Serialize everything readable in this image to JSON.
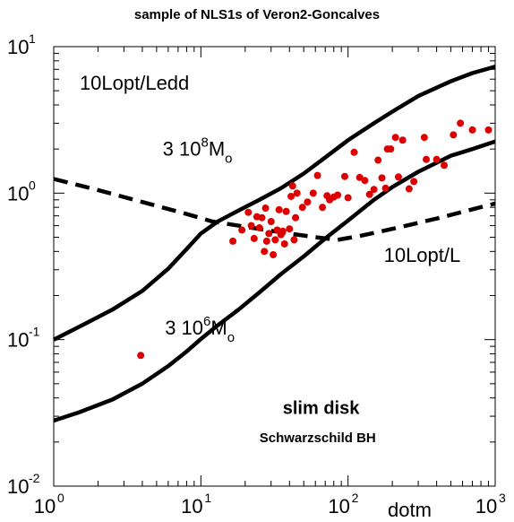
{
  "chart_data": {
    "type": "scatter",
    "title": "sample of NLS1s of Veron2-Goncalves",
    "xlabel": "dotm",
    "ylabel": "",
    "xscale": "log",
    "yscale": "log",
    "xlim": [
      1,
      1000
    ],
    "ylim": [
      0.01,
      10
    ],
    "grid": false,
    "x_ticks": [
      {
        "value": 1,
        "base": "10",
        "exp": "0"
      },
      {
        "value": 10,
        "base": "10",
        "exp": "1"
      },
      {
        "value": 100,
        "base": "10",
        "exp": "2"
      },
      {
        "value": 1000,
        "base": "10",
        "exp": "3"
      }
    ],
    "y_ticks": [
      {
        "value": 0.01,
        "base": "10",
        "exp": "-2"
      },
      {
        "value": 0.1,
        "base": "10",
        "exp": "-1"
      },
      {
        "value": 1,
        "base": "10",
        "exp": "0"
      },
      {
        "value": 10,
        "base": "10",
        "exp": "1"
      }
    ],
    "curves": [
      {
        "style": "solid",
        "points": [
          [
            1,
            0.1
          ],
          [
            1.6,
            0.127
          ],
          [
            2.5,
            0.16
          ],
          [
            4,
            0.215
          ],
          [
            6,
            0.305
          ],
          [
            8,
            0.415
          ],
          [
            10,
            0.53
          ],
          [
            13,
            0.64
          ],
          [
            18,
            0.76
          ],
          [
            25,
            0.9
          ],
          [
            35,
            1.08
          ],
          [
            50,
            1.36
          ],
          [
            70,
            1.75
          ],
          [
            100,
            2.3
          ],
          [
            150,
            3.0
          ],
          [
            200,
            3.6
          ],
          [
            300,
            4.6
          ],
          [
            500,
            5.8
          ],
          [
            700,
            6.6
          ],
          [
            1000,
            7.3
          ]
        ]
      },
      {
        "style": "solid",
        "points": [
          [
            1,
            0.028
          ],
          [
            1.5,
            0.032
          ],
          [
            2.5,
            0.039
          ],
          [
            4,
            0.05
          ],
          [
            6,
            0.066
          ],
          [
            8,
            0.083
          ],
          [
            10,
            0.101
          ],
          [
            13,
            0.125
          ],
          [
            18,
            0.16
          ],
          [
            25,
            0.21
          ],
          [
            35,
            0.28
          ],
          [
            50,
            0.37
          ],
          [
            70,
            0.49
          ],
          [
            100,
            0.65
          ],
          [
            150,
            0.9
          ],
          [
            200,
            1.1
          ],
          [
            300,
            1.4
          ],
          [
            500,
            1.8
          ],
          [
            700,
            2.0
          ],
          [
            1000,
            2.25
          ]
        ]
      },
      {
        "style": "dashed",
        "points": [
          [
            1,
            1.25
          ],
          [
            2,
            1.05
          ],
          [
            4,
            0.87
          ],
          [
            8,
            0.72
          ],
          [
            12,
            0.64
          ],
          [
            20,
            0.59
          ],
          [
            35,
            0.54
          ],
          [
            60,
            0.5
          ],
          [
            85,
            0.48
          ],
          [
            120,
            0.51
          ],
          [
            200,
            0.57
          ],
          [
            400,
            0.67
          ],
          [
            1000,
            0.85
          ]
        ]
      }
    ],
    "series": [
      {
        "color": "#dd0000",
        "points": [
          [
            3.9,
            0.078
          ],
          [
            16.5,
            0.47
          ],
          [
            19,
            0.56
          ],
          [
            21,
            0.74
          ],
          [
            22,
            0.6
          ],
          [
            23,
            0.49
          ],
          [
            24,
            0.69
          ],
          [
            25,
            0.58
          ],
          [
            26,
            0.68
          ],
          [
            27,
            0.4
          ],
          [
            27.5,
            0.79
          ],
          [
            28,
            0.47
          ],
          [
            29,
            0.53
          ],
          [
            30,
            0.64
          ],
          [
            31,
            0.38
          ],
          [
            32,
            0.48
          ],
          [
            33,
            0.56
          ],
          [
            34,
            0.77
          ],
          [
            35,
            0.52
          ],
          [
            36,
            0.55
          ],
          [
            37,
            0.45
          ],
          [
            38,
            0.75
          ],
          [
            40,
            0.57
          ],
          [
            41,
            0.95
          ],
          [
            42,
            1.12
          ],
          [
            43,
            0.48
          ],
          [
            44,
            0.68
          ],
          [
            45,
            1.0
          ],
          [
            49,
            0.8
          ],
          [
            53,
            0.87
          ],
          [
            58,
            1.0
          ],
          [
            62,
            1.32
          ],
          [
            67,
            0.8
          ],
          [
            72,
            0.96
          ],
          [
            75,
            0.9
          ],
          [
            80,
            0.94
          ],
          [
            85,
            0.97
          ],
          [
            95,
            1.3
          ],
          [
            100,
            0.93
          ],
          [
            110,
            1.9
          ],
          [
            120,
            1.28
          ],
          [
            130,
            1.22
          ],
          [
            140,
            0.98
          ],
          [
            150,
            1.06
          ],
          [
            160,
            1.68
          ],
          [
            170,
            1.27
          ],
          [
            180,
            1.08
          ],
          [
            185,
            2.0
          ],
          [
            195,
            2.0
          ],
          [
            210,
            2.4
          ],
          [
            220,
            1.29
          ],
          [
            235,
            2.3
          ],
          [
            260,
            1.07
          ],
          [
            280,
            1.2
          ],
          [
            330,
            2.4
          ],
          [
            340,
            1.7
          ],
          [
            400,
            1.7
          ],
          [
            450,
            1.55
          ],
          [
            520,
            2.5
          ],
          [
            580,
            3.0
          ],
          [
            700,
            2.7
          ],
          [
            900,
            2.7
          ]
        ]
      }
    ],
    "annotations": [
      {
        "text": "10Lopt/Ledd",
        "x": 1.5,
        "y": 5.1
      },
      {
        "text": "3 10",
        "sup": "8",
        "text2": "M",
        "sub": "o",
        "x": 5.5,
        "y": 1.8
      },
      {
        "text": "10Lopt/L",
        "x": 175,
        "y": 0.34
      },
      {
        "text": "3 10",
        "sup": "6",
        "text2": "M",
        "sub": "o",
        "x": 5.7,
        "y": 0.108
      },
      {
        "text": "slim disk",
        "x": 36,
        "y": 0.031
      },
      {
        "text": "Schwarzschild BH",
        "x": 25,
        "y": 0.02
      }
    ]
  }
}
